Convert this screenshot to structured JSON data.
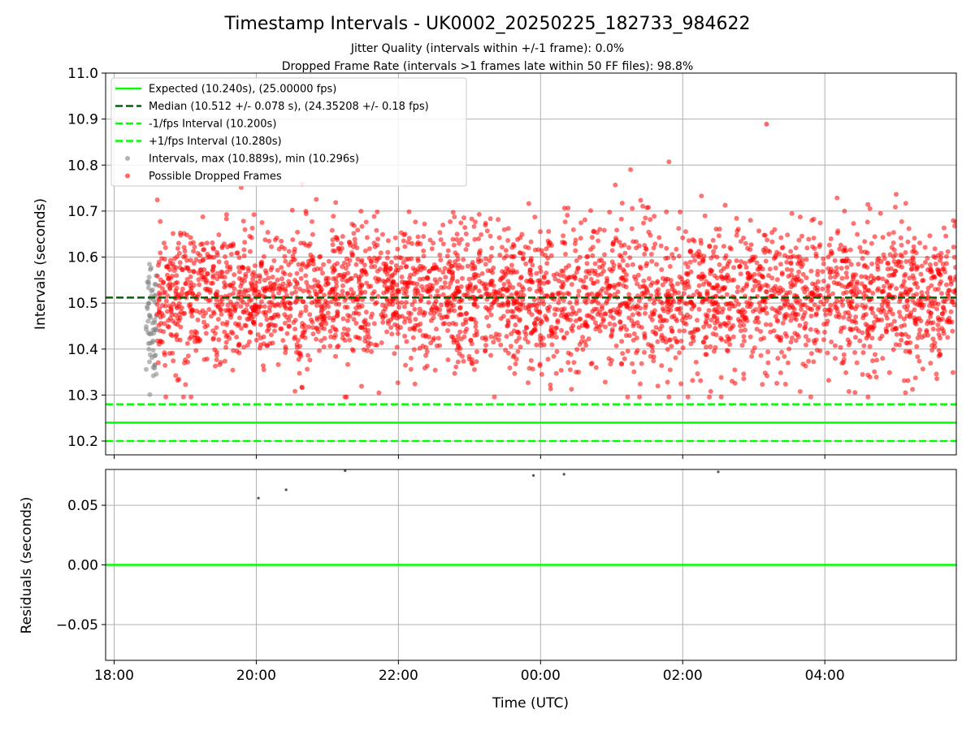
{
  "chart_data": [
    {
      "type": "scatter",
      "title": "Timestamp Intervals - UK0002_20250225_182733_984622",
      "subtitle_lines": [
        "Jitter Quality (intervals within +/-1 frame): 0.0%",
        "Dropped Frame Rate (intervals >1 frames late within 50 FF files): 98.8%"
      ],
      "ylabel": "Intervals (seconds)",
      "xlim_hours": [
        17.88,
        29.85
      ],
      "ylim": [
        10.17,
        11.0
      ],
      "yticks": [
        10.2,
        10.3,
        10.4,
        10.5,
        10.6,
        10.7,
        10.8,
        10.9,
        11.0
      ],
      "ytick_labels": [
        "10.2",
        "10.3",
        "10.4",
        "10.5",
        "10.6",
        "10.7",
        "10.8",
        "10.9",
        "11.0"
      ],
      "xticks_hours": [
        18,
        20,
        22,
        24,
        26,
        28
      ],
      "grid": true,
      "legend_position": "upper-left",
      "lines": [
        {
          "name": "Expected (10.240s), (25.00000 fps)",
          "y": 10.24,
          "style": "solid",
          "color": "#00ff00"
        },
        {
          "name": "Median (10.512 +/- 0.078 s), (24.35208 +/- 0.18 fps)",
          "y": 10.512,
          "style": "dashed",
          "color": "#006400"
        },
        {
          "name": "-1/fps Interval (10.200s)",
          "y": 10.2,
          "style": "dashed",
          "color": "#00ff00"
        },
        {
          "name": "+1/fps Interval (10.280s)",
          "y": 10.28,
          "style": "dashed",
          "color": "#00ff00"
        }
      ],
      "series": [
        {
          "name": "Intervals, max (10.889s), min (10.296s)",
          "color": "#808080",
          "x_range_hours": [
            18.45,
            18.6
          ],
          "y_center": 10.47,
          "y_spread": 0.07,
          "count": 60
        },
        {
          "name": "Possible Dropped Frames",
          "color": "#ff0000",
          "x_range_hours": [
            18.6,
            29.85
          ],
          "y_center": 10.512,
          "y_spread": 0.078,
          "count": 3500,
          "y_max": 10.889,
          "y_min": 10.296
        }
      ]
    },
    {
      "type": "scatter",
      "xlabel": "Time (UTC)",
      "ylabel": "Residuals (seconds)",
      "xlim_hours": [
        17.88,
        29.85
      ],
      "ylim": [
        -0.08,
        0.08
      ],
      "yticks": [
        0.05,
        0.0,
        -0.05
      ],
      "ytick_labels": [
        "0.05",
        "0.00",
        "−0.05"
      ],
      "xticks_hours": [
        18,
        20,
        22,
        24,
        26,
        28
      ],
      "xtick_labels": [
        "18:00",
        "20:00",
        "22:00",
        "00:00",
        "02:00",
        "04:00"
      ],
      "grid": true,
      "zero_line_color": "#00ff00",
      "points": [
        {
          "x_hours": 20.03,
          "y": 0.056
        },
        {
          "x_hours": 20.42,
          "y": 0.063
        },
        {
          "x_hours": 21.25,
          "y": 0.079
        },
        {
          "x_hours": 23.9,
          "y": 0.075
        },
        {
          "x_hours": 24.33,
          "y": 0.076
        },
        {
          "x_hours": 26.5,
          "y": 0.078
        }
      ]
    }
  ]
}
